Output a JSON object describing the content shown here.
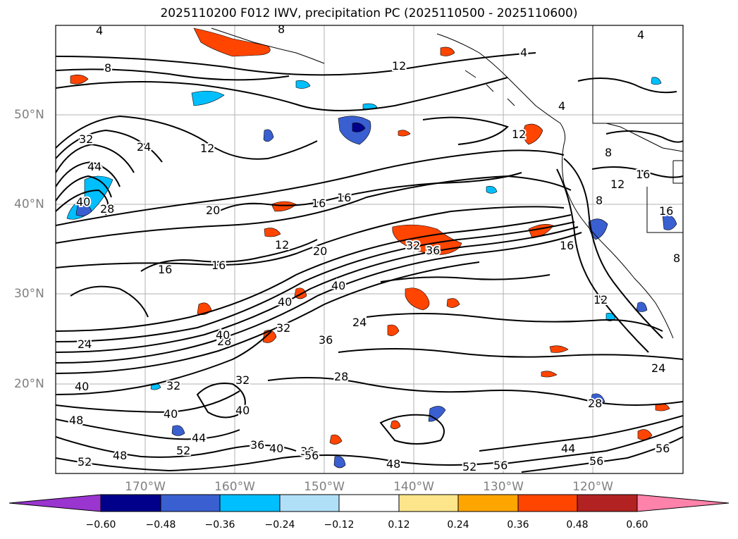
{
  "title": "2025110200 F012 IWV, precipitation PC (2025110500 - 2025110600)",
  "lat_labels": [
    "50°N",
    "40°N",
    "30°N",
    "20°N"
  ],
  "lon_labels": [
    "170°W",
    "160°W",
    "150°W",
    "140°W",
    "130°W",
    "120°W"
  ],
  "colorbar": {
    "ticks": [
      "−0.60",
      "−0.48",
      "−0.36",
      "−0.24",
      "−0.12",
      "0.12",
      "0.24",
      "0.36",
      "0.48",
      "0.60"
    ],
    "colors": [
      "#9a35d0",
      "#00008b",
      "#3a5fd0",
      "#00bfff",
      "#b0e0f8",
      "#ffffff",
      "#fce58a",
      "#ffa500",
      "#ff4500",
      "#b22222",
      "#ff82ab"
    ]
  },
  "contour_labels": [
    "4",
    "4",
    "4",
    "4",
    "8",
    "8",
    "8",
    "8",
    "8",
    "12",
    "12",
    "12",
    "12",
    "12",
    "12",
    "16",
    "16",
    "16",
    "16",
    "16",
    "16",
    "16",
    "20",
    "20",
    "24",
    "24",
    "24",
    "24",
    "28",
    "28",
    "28",
    "28",
    "32",
    "32",
    "32",
    "32",
    "32",
    "36",
    "36",
    "36",
    "36",
    "40",
    "40",
    "40",
    "40",
    "40",
    "40",
    "40",
    "40",
    "44",
    "44",
    "44",
    "48",
    "48",
    "48",
    "52",
    "52",
    "52",
    "56",
    "56",
    "56",
    "56"
  ],
  "precip_colors": {
    "neg_light": "#00bfff",
    "neg_mid": "#3a5fd0",
    "neg_dark": "#00008b",
    "pos_light": "#ffa500",
    "pos_mid": "#ff4500",
    "pos_dark": "#b22222"
  }
}
